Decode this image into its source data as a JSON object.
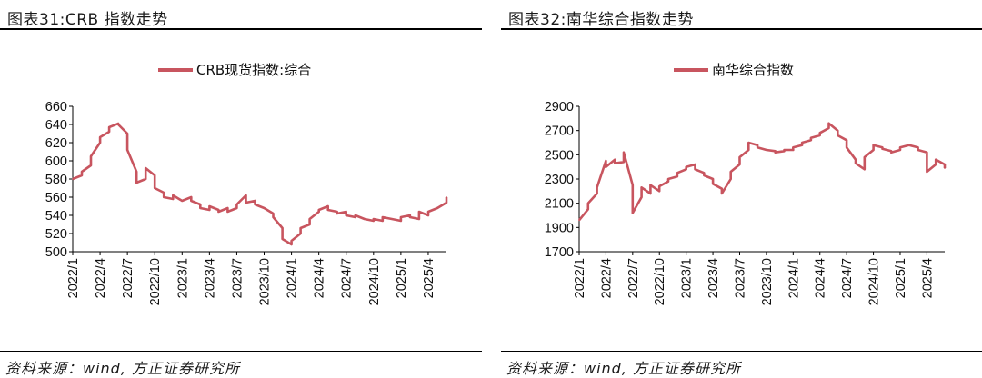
{
  "colors": {
    "series": "#C8555F",
    "axis": "#000000",
    "text": "#111111"
  },
  "panels": [
    {
      "title": "图表31:CRB 指数走势",
      "source": "资料来源：wind, 方正证券研究所"
    },
    {
      "title": "图表32:南华综合指数走势",
      "source": "资料来源：wind, 方正证券研究所"
    }
  ],
  "chart_data": [
    {
      "type": "line",
      "title": "",
      "xlabel": "",
      "ylabel": "",
      "ylim": [
        500,
        660
      ],
      "yticks": [
        500,
        520,
        540,
        560,
        580,
        600,
        620,
        640,
        660
      ],
      "xticks": [
        "2022/1",
        "2022/4",
        "2022/7",
        "2022/10",
        "2023/1",
        "2023/4",
        "2023/7",
        "2023/10",
        "2024/1",
        "2024/4",
        "2024/7",
        "2024/10",
        "2025/1",
        "2025/4"
      ],
      "legend": "top-center",
      "grid": false,
      "series": [
        {
          "name": "CRB现货指数:综合",
          "x": [
            "2022/1",
            "2022/1.5",
            "2022/2",
            "2022/2.5",
            "2022/3",
            "2022/3.5",
            "2022/4",
            "2022/4.5",
            "2022/5",
            "2022/5.5",
            "2022/6",
            "2022/6.5",
            "2022/7",
            "2022/7.5",
            "2022/8",
            "2022/8.5",
            "2022/9",
            "2022/9.5",
            "2022/10",
            "2022/10.5",
            "2022/11",
            "2022/11.5",
            "2022/12",
            "2022/12.5",
            "2023/1",
            "2023/1.5",
            "2023/2",
            "2023/2.5",
            "2023/3",
            "2023/3.5",
            "2023/4",
            "2023/4.5",
            "2023/5",
            "2023/5.5",
            "2023/6",
            "2023/6.5",
            "2023/7",
            "2023/7.5",
            "2023/8",
            "2023/8.5",
            "2023/9",
            "2023/9.5",
            "2023/10",
            "2023/10.5",
            "2023/11",
            "2023/11.5",
            "2023/12",
            "2023/12.5",
            "2024/1",
            "2024/1.5",
            "2024/2",
            "2024/2.5",
            "2024/3",
            "2024/3.5",
            "2024/4",
            "2024/4.5",
            "2024/5",
            "2024/5.5",
            "2024/6",
            "2024/6.5",
            "2024/7",
            "2024/7.5",
            "2024/8",
            "2024/8.5",
            "2024/9",
            "2024/9.5",
            "2024/10",
            "2024/10.5",
            "2024/11",
            "2024/11.5",
            "2024/12",
            "2024/12.5",
            "2025/1",
            "2025/1.5",
            "2025/2",
            "2025/2.5",
            "2025/3",
            "2025/3.5",
            "2025/4",
            "2025/4.5",
            "2025/5",
            "2025/5.5",
            "2025/6"
          ],
          "values": [
            580,
            584,
            588,
            595,
            605,
            620,
            626,
            632,
            637,
            641,
            640,
            630,
            612,
            588,
            576,
            580,
            592,
            584,
            570,
            565,
            560,
            558,
            562,
            556,
            556,
            560,
            556,
            552,
            548,
            546,
            550,
            546,
            544,
            548,
            544,
            548,
            552,
            562,
            554,
            556,
            552,
            548,
            548,
            542,
            538,
            526,
            514,
            508,
            512,
            520,
            526,
            530,
            536,
            544,
            546,
            550,
            546,
            544,
            542,
            544,
            540,
            538,
            540,
            536,
            536,
            534,
            536,
            534,
            538,
            536,
            536,
            534,
            538,
            540,
            538,
            536,
            544,
            540,
            544,
            548,
            548,
            554,
            560
          ]
        }
      ]
    },
    {
      "type": "line",
      "title": "",
      "xlabel": "",
      "ylabel": "",
      "ylim": [
        1700,
        2900
      ],
      "yticks": [
        1700,
        1900,
        2100,
        2300,
        2500,
        2700,
        2900
      ],
      "xticks": [
        "2022/1",
        "2022/4",
        "2022/7",
        "2022/10",
        "2023/1",
        "2023/4",
        "2023/7",
        "2023/10",
        "2024/1",
        "2024/4",
        "2024/7",
        "2024/10",
        "2025/1",
        "2025/4"
      ],
      "legend": "top-center",
      "grid": false,
      "series": [
        {
          "name": "南华综合指数",
          "x": [
            "2022/1",
            "2022/1.5",
            "2022/2",
            "2022/2.5",
            "2022/3",
            "2022/3.5",
            "2022/4",
            "2022/4.5",
            "2022/5",
            "2022/5.5",
            "2022/6",
            "2022/6.5",
            "2022/7",
            "2022/7.5",
            "2022/8",
            "2022/8.5",
            "2022/9",
            "2022/9.5",
            "2022/10",
            "2022/10.5",
            "2022/11",
            "2022/11.5",
            "2022/12",
            "2022/12.5",
            "2023/1",
            "2023/1.5",
            "2023/2",
            "2023/2.5",
            "2023/3",
            "2023/3.5",
            "2023/4",
            "2023/4.5",
            "2023/5",
            "2023/5.5",
            "2023/6",
            "2023/6.5",
            "2023/7",
            "2023/7.5",
            "2023/8",
            "2023/8.5",
            "2023/9",
            "2023/9.5",
            "2023/10",
            "2023/10.5",
            "2023/11",
            "2023/11.5",
            "2023/12",
            "2023/12.5",
            "2024/1",
            "2024/1.5",
            "2024/2",
            "2024/2.5",
            "2024/3",
            "2024/3.5",
            "2024/4",
            "2024/4.5",
            "2024/5",
            "2024/5.5",
            "2024/6",
            "2024/6.5",
            "2024/7",
            "2024/7.5",
            "2024/8",
            "2024/8.5",
            "2024/9",
            "2024/9.5",
            "2024/10",
            "2024/10.5",
            "2024/11",
            "2024/11.5",
            "2024/12",
            "2024/12.5",
            "2025/1",
            "2025/1.5",
            "2025/2",
            "2025/2.5",
            "2025/3",
            "2025/3.5",
            "2025/4",
            "2025/4.5",
            "2025/5",
            "2025/5.5",
            "2025/6"
          ],
          "values": [
            1960,
            2050,
            2100,
            2180,
            2230,
            2450,
            2400,
            2460,
            2430,
            2440,
            2520,
            2250,
            2020,
            2150,
            2230,
            2180,
            2250,
            2200,
            2240,
            2280,
            2300,
            2320,
            2350,
            2380,
            2400,
            2420,
            2380,
            2350,
            2330,
            2300,
            2260,
            2220,
            2180,
            2300,
            2360,
            2420,
            2480,
            2540,
            2600,
            2580,
            2560,
            2540,
            2540,
            2530,
            2520,
            2530,
            2540,
            2540,
            2560,
            2580,
            2600,
            2620,
            2640,
            2660,
            2680,
            2720,
            2760,
            2700,
            2660,
            2620,
            2560,
            2460,
            2430,
            2380,
            2480,
            2540,
            2580,
            2560,
            2550,
            2530,
            2520,
            2540,
            2560,
            2580,
            2580,
            2560,
            2540,
            2520,
            2360,
            2420,
            2460,
            2420,
            2390
          ]
        }
      ]
    }
  ]
}
